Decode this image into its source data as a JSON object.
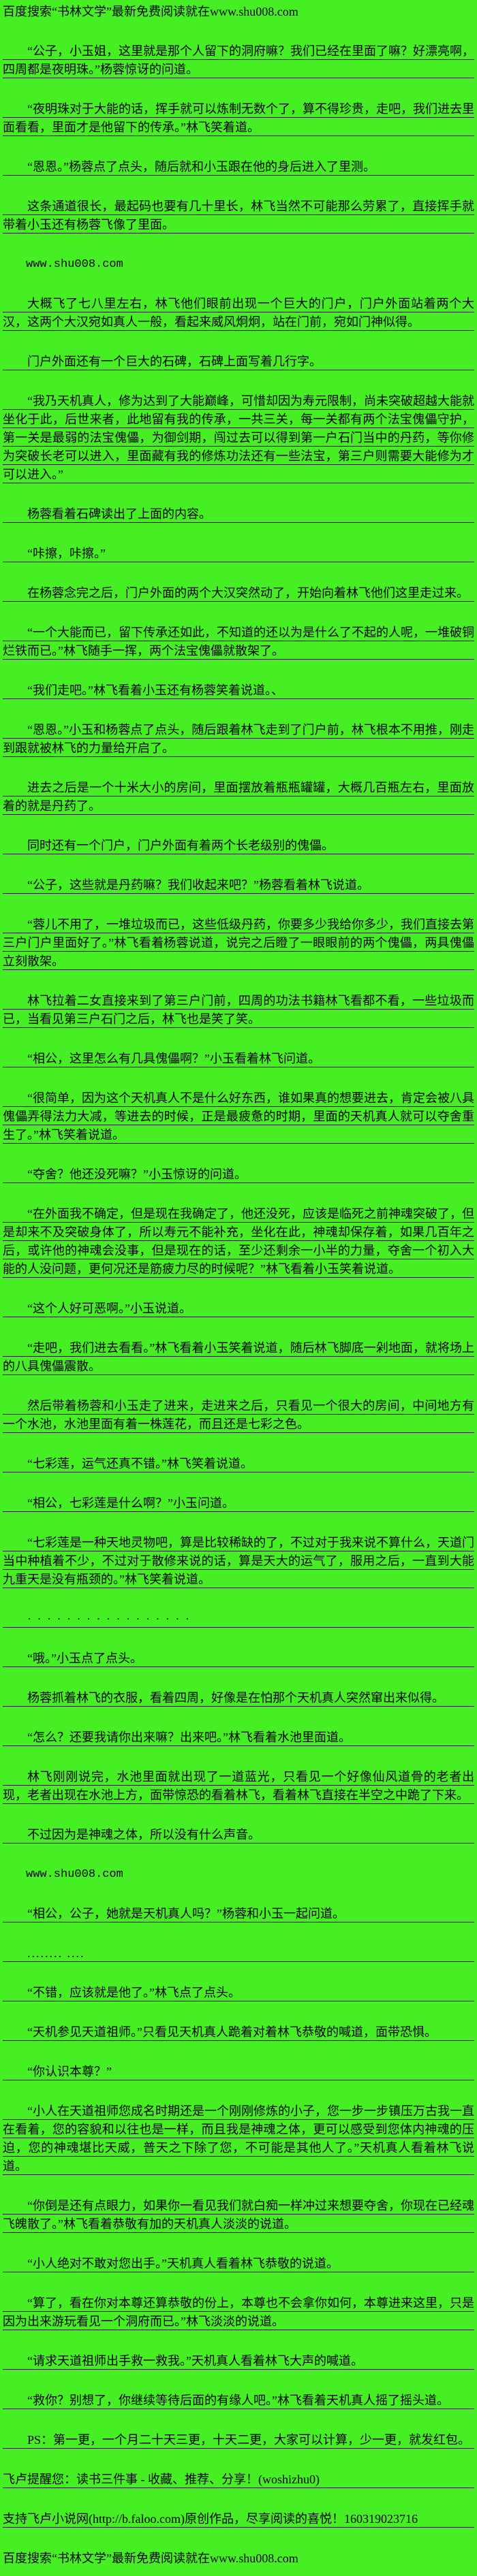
{
  "meta": {
    "background_color": "#45ef23",
    "text_color": "#000000",
    "language": "zh-CN"
  },
  "header": {
    "promo_line": "百度搜索“书林文学”最新免费阅读就在www.shu008.com"
  },
  "content": {
    "paragraphs": [
      {
        "variant": "body",
        "text": "“公子，小玉姐，这里就是那个人留下的洞府嘛？我们已经在里面了嘛？好漂亮啊，四周都是夜明珠。”杨蓉惊讶的问道。"
      },
      {
        "variant": "body",
        "text": "“夜明珠对于大能的话，挥手就可以炼制无数个了，算不得珍贵，走吧，我们进去里面看看，里面才是他留下的传承。”林飞笑着道。"
      },
      {
        "variant": "body",
        "text": "“恩恩。”杨蓉点了点头，随后就和小玉跟在他的身后进入了里测。"
      },
      {
        "variant": "body",
        "text": "这条通道很长，最起码也要有几十里长，林飞当然不可能那么劳累了，直接挥手就带着小玉还有杨蓉飞像了里面。"
      },
      {
        "variant": "site",
        "text": "www.shu008.com"
      },
      {
        "variant": "body",
        "text": "大概飞了七八里左右，林飞他们眼前出现一个巨大的门户，门户外面站着两个大汉，这两个大汉宛如真人一般，看起来威风炯炯，站在门前，宛如门神似得。"
      },
      {
        "variant": "body",
        "text": "门户外面还有一个巨大的石碑，石碑上面写着几行字。"
      },
      {
        "variant": "body",
        "text": "“我乃天机真人，修为达到了大能巅峰，可惜却因为寿元限制，尚未突破超越大能就坐化于此，后世来者，此地留有我的传承，一共三关，每一关都有两个法宝傀儡守护，第一关是最弱的法宝傀儡，为御剑期，闯过去可以得到第一户石门当中的丹药，等你修为突破长老可以进入，里面藏有我的修炼功法还有一些法宝，第三户则需要大能修为才可以进入。”"
      },
      {
        "variant": "body",
        "text": "杨蓉看着石碑读出了上面的内容。"
      },
      {
        "variant": "body",
        "text": "“咔擦，咔擦。”"
      },
      {
        "variant": "body",
        "text": "在杨蓉念完之后，门户外面的两个大汉突然动了，开始向着林飞他们这里走过来。"
      },
      {
        "variant": "body",
        "text": "“一个大能而已，留下传承还如此，不知道的还以为是什么了不起的人呢，一堆破铜烂铁而已。”林飞随手一挥，两个法宝傀儡就散架了。"
      },
      {
        "variant": "body",
        "text": "“我们走吧。”林飞看着小玉还有杨蓉笑着说道。、"
      },
      {
        "variant": "body",
        "text": "“恩恩。”小玉和杨蓉点了点头，随后跟着林飞走到了门户前，林飞根本不用推，刚走到跟就被林飞的力量给开启了。"
      },
      {
        "variant": "body",
        "text": "进去之后是一个十米大小的房间，里面摆放着瓶瓶罐罐，大概几百瓶左右，里面放着的就是丹药了。"
      },
      {
        "variant": "body",
        "text": "同时还有一个门户，门户外面有着两个长老级别的傀儡。"
      },
      {
        "variant": "body",
        "text": "“公子，这些就是丹药嘛？我们收起来吧？”杨蓉看着林飞说道。"
      },
      {
        "variant": "body",
        "text": "“蓉儿不用了，一堆垃圾而已，这些低级丹药，你要多少我给你多少，我们直接去第三户门户里面好了。”林飞看着杨蓉说道，说完之后瞪了一眼眼前的两个傀儡，两具傀儡立刻散架。"
      },
      {
        "variant": "body",
        "text": "林飞拉着二女直接来到了第三户门前，四周的功法书籍林飞看都不看，一些垃圾而已，当看见第三户石门之后，林飞也是笑了笑。"
      },
      {
        "variant": "body",
        "text": "“相公，这里怎么有几具傀儡啊？”小玉看着林飞问道。"
      },
      {
        "variant": "body",
        "text": "“很简单，因为这个天机真人不是什么好东西，谁如果真的想要进去，肯定会被八具傀儡弄得法力大减，等进去的时候，正是最疲惫的时期，里面的天机真人就可以夺舍重生了。”林飞笑着说道。"
      },
      {
        "variant": "body",
        "text": "“夺舍？他还没死嘛？”小玉惊讶的问道。"
      },
      {
        "variant": "body",
        "text": "“在外面我不确定，但是现在我确定了，他还没死，应该是临死之前神魂突破了，但是却来不及突破身体了，所以寿元不能补充，坐化在此，神魂却保存着，如果几百年之后，或许他的神魂会没事，但是现在的话，至少还剩余一小半的力量，夺舍一个初入大能的人没问题，更何况还是筋疲力尽的时候呢？”林飞看着小玉笑着说道。"
      },
      {
        "variant": "body",
        "text": "“这个人好可恶啊。”小玉说道。"
      },
      {
        "variant": "body",
        "text": "“走吧，我们进去看看。”林飞看着小玉笑着说道，随后林飞脚底一剁地面，就将场上的八具傀儡震散。"
      },
      {
        "variant": "body",
        "text": "然后带着杨蓉和小玉走了进来，走进来之后，只看见一个很大的房间，中间地方有一个水池，水池里面有着一株莲花，而且还是七彩之色。"
      },
      {
        "variant": "body",
        "text": "“七彩莲，运气还真不错。”林飞笑着说道。"
      },
      {
        "variant": "body",
        "text": "“相公，七彩莲是什么啊？”小玉问道。"
      },
      {
        "variant": "body",
        "text": "“七彩莲是一种天地灵物吧，算是比较稀缺的了，不过对于我来说不算什么，天道门当中种植着不少，不过对于散修来说的话，算是天大的运气了，服用之后，一直到大能九重天是没有瓶颈的。”林飞笑着说道。"
      },
      {
        "variant": "dots",
        "text": "· · · · · · · · · · · · · · · · ·"
      },
      {
        "variant": "body",
        "text": "“哦。”小玉点了点头。"
      },
      {
        "variant": "body",
        "text": "杨蓉抓着林飞的衣服，看着四周，好像是在怕那个天机真人突然窜出来似得。"
      },
      {
        "variant": "body",
        "text": "“怎么？还要我请你出来嘛？出来吧。”林飞看着水池里面道。"
      },
      {
        "variant": "body",
        "text": "林飞刚刚说完，水池里面就出现了一道蓝光，只看见一个好像仙风道骨的老者出现，老者出现在水池上方，面带惊恐的看着林飞，看着林飞直接在半空之中跪了下来。"
      },
      {
        "variant": "body",
        "text": "不过因为是神魂之体，所以没有什么声音。"
      },
      {
        "variant": "site",
        "text": "www.shu008.com"
      },
      {
        "variant": "body",
        "text": "“相公，公子，她就是天机真人吗？”杨蓉和小玉一起问道。"
      },
      {
        "variant": "dots",
        "text": "........ ...."
      },
      {
        "variant": "body",
        "text": "“不错，应该就是他了。”林飞点了点头。"
      },
      {
        "variant": "body",
        "text": "“天机参见天道祖师。”只看见天机真人跪着对着林飞恭敬的喊道，面带恐惧。"
      },
      {
        "variant": "body",
        "text": "“你认识本尊？”"
      },
      {
        "variant": "body",
        "text": "“小人在天道祖师您成名时期还是一个刚刚修炼的小子，您一步一步镇压万古我一直在看着，您的容貌和以往也是一样，而且我是神魂之体，更可以感受到您体内神魂的压迫，您的神魂堪比天威，普天之下除了您，不可能是其他人了。”天机真人看着林飞说道。"
      },
      {
        "variant": "body",
        "text": "“你倒是还有点眼力，如果你一看见我们就白痴一样冲过来想要夺舍，你现在已经魂飞魄散了。”林飞看着恭敬有加的天机真人淡淡的说道。"
      },
      {
        "variant": "body",
        "text": "“小人绝对不敢对您出手。”天机真人看着林飞恭敬的说道。"
      },
      {
        "variant": "body",
        "text": "“算了，看在你对本尊还算恭敬的份上，本尊也不会拿你如何，本尊进来这里，只是因为出来游玩看见一个洞府而已。”林飞淡淡的说道。"
      },
      {
        "variant": "body",
        "text": "“请求天道祖师出手救一救我。”天机真人看着林飞大声的喊道。"
      },
      {
        "variant": "body",
        "text": "“救你？别想了，你继续等待后面的有缘人吧。”林飞看着天机真人摇了摇头道。"
      },
      {
        "variant": "body",
        "text": "PS：第一更，一个月二十天三更，十天二更，大家可以计算，少一更，就发红包。"
      },
      {
        "variant": "flat",
        "text": "飞卢提醒您：读书三件事 - 收藏、推荐、分享！(woshizhu0)"
      },
      {
        "variant": "flat",
        "text": "支持飞卢小说网(http://b.faloo.com)原创作品，尽享阅读的喜悦！160319023716"
      }
    ]
  },
  "footer": {
    "promo_line": "百度搜索“书林文学”最新免费阅读就在www.shu008.com"
  }
}
